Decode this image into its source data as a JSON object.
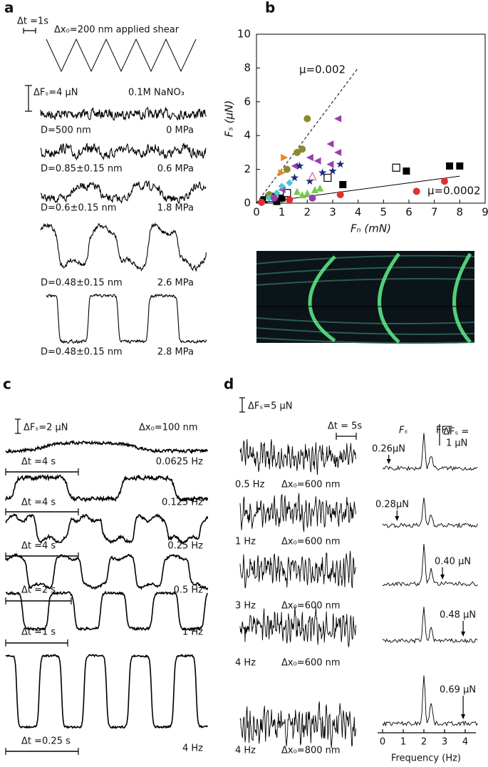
{
  "panels": {
    "a": {
      "label": "a",
      "dt": "Δt =1s",
      "shear": "Δx₀=200 nm applied shear",
      "scale": "ΔFₛ=4 μN",
      "solution": "0.1M NaNO₃",
      "traces": [
        {
          "D": "D=500 nm",
          "P": "0 MPa"
        },
        {
          "D": "D=0.85±0.15 nm",
          "P": "0.6 MPa"
        },
        {
          "D": "D=0.6±0.15 nm",
          "P": "1.8 MPa"
        },
        {
          "D": "D=0.48±0.15 nm",
          "P": "2.6 MPa"
        },
        {
          "D": "D=0.48±0.15 nm",
          "P": "2.8 MPa"
        }
      ]
    },
    "b": {
      "label": "b"
    },
    "c": {
      "label": "c",
      "scale": "ΔFₛ=2 μN",
      "amplitude": "Δx₀=100 nm",
      "traces": [
        {
          "dt": "Δt =4 s",
          "f": "0.0625 Hz"
        },
        {
          "dt": "Δt =4 s",
          "f": "0.125 Hz"
        },
        {
          "dt": "Δt =4 s",
          "f": "0.25 Hz"
        },
        {
          "dt": "Δt =2 s",
          "f": "0.5 Hz"
        },
        {
          "dt": "Δt =1 s",
          "f": "1 Hz"
        },
        {
          "dt": "Δt =0.25 s",
          "f": "4 Hz"
        }
      ]
    },
    "d": {
      "label": "d",
      "scale": "ΔFₛ=5 μN",
      "dt": "Δt = 5s",
      "fs": "Fₛ",
      "fft": "FFT",
      "fft_scale": [
        "ΔFₛ =",
        "1 μN"
      ],
      "traces": [
        {
          "f": "0.5 Hz",
          "dx": "Δx₀=600 nm",
          "peak": "0.26μN"
        },
        {
          "f": "1 Hz",
          "dx": "Δx₀=600 nm",
          "peak": "0.28μN"
        },
        {
          "f": "3 Hz",
          "dx": "Δx₀=600 nm",
          "peak": "0.40 μN"
        },
        {
          "f": "4 Hz",
          "dx": "Δx₀=600 nm",
          "peak": "0.48 μN"
        },
        {
          "f": "4 Hz",
          "dx": "Δx₀=800 nm",
          "peak": "0.69 μN"
        }
      ],
      "fft_xticks": [
        "0",
        "1",
        "2",
        "3",
        "4"
      ],
      "fft_xlabel": "Frequency (Hz)"
    }
  },
  "chart_data": {
    "type": "scatter",
    "xlabel": "Fₙ (mN)",
    "ylabel": "Fₛ (μN)",
    "xlim": [
      0,
      9
    ],
    "ylim": [
      0,
      10
    ],
    "xticks": [
      0,
      1,
      2,
      3,
      4,
      5,
      6,
      7,
      8,
      9
    ],
    "yticks": [
      0,
      2,
      4,
      6,
      8,
      10
    ],
    "series": [
      {
        "marker": "square",
        "color": "#000000",
        "x": [
          0.3,
          0.6,
          0.8,
          1,
          3.4,
          5.9,
          7.6,
          8
        ],
        "values": [
          0.2,
          0.4,
          0.1,
          0.3,
          1.1,
          1.9,
          2.2,
          2.2
        ]
      },
      {
        "marker": "open-square",
        "color": "#000000",
        "x": [
          0.5,
          1.2,
          2.8,
          5.5
        ],
        "values": [
          0.3,
          0.6,
          1.5,
          2.1
        ]
      },
      {
        "marker": "circle",
        "color": "#e03030",
        "x": [
          0.2,
          1.3,
          3.3,
          6.3,
          7.4
        ],
        "values": [
          0.05,
          0.2,
          0.5,
          0.7,
          1.3
        ]
      },
      {
        "marker": "circle",
        "color": "#8a8a30",
        "x": [
          0.5,
          1.2,
          1.6,
          1.8,
          2
        ],
        "values": [
          0.5,
          2,
          3,
          3.2,
          5
        ]
      },
      {
        "marker": "triangle-right",
        "color": "#e8842a",
        "x": [
          1,
          1.1
        ],
        "values": [
          1.8,
          2.7
        ]
      },
      {
        "marker": "triangle-left",
        "color": "#9a3fb0",
        "x": [
          1,
          1.5,
          2.1,
          2.4,
          2.9,
          2.9,
          3.2,
          3.2
        ],
        "values": [
          0.8,
          2.2,
          2.7,
          2.5,
          2.3,
          3.5,
          3,
          5
        ]
      },
      {
        "marker": "star",
        "color": "#1f2a7a",
        "x": [
          1.5,
          1.7,
          2.1,
          2.6,
          3,
          3.3
        ],
        "values": [
          1.5,
          2.2,
          1.3,
          1.8,
          1.9,
          2.3
        ]
      },
      {
        "marker": "diamond",
        "color": "#48c8d8",
        "x": [
          0.5,
          0.8,
          1,
          1.3
        ],
        "values": [
          0.3,
          0.6,
          1,
          1.2
        ]
      },
      {
        "marker": "triangle-up",
        "color": "#78c850",
        "x": [
          1.6,
          1.8,
          2,
          2.3,
          2.5
        ],
        "values": [
          0.7,
          0.5,
          0.6,
          0.8,
          0.9
        ]
      },
      {
        "marker": "open-triangle",
        "color": "#e060a0",
        "x": [
          2.2
        ],
        "values": [
          1.6
        ]
      },
      {
        "marker": "circle",
        "color": "#9a3fb0",
        "x": [
          0.7,
          2.2
        ],
        "values": [
          0.3,
          0.3
        ]
      }
    ],
    "lines": [
      {
        "label": "μ=0.002",
        "x": [
          0,
          4
        ],
        "values": [
          0,
          8
        ],
        "dash": true
      },
      {
        "label": "μ=0.0002",
        "x": [
          0,
          8
        ],
        "values": [
          0,
          1.6
        ],
        "dash": false
      }
    ]
  }
}
